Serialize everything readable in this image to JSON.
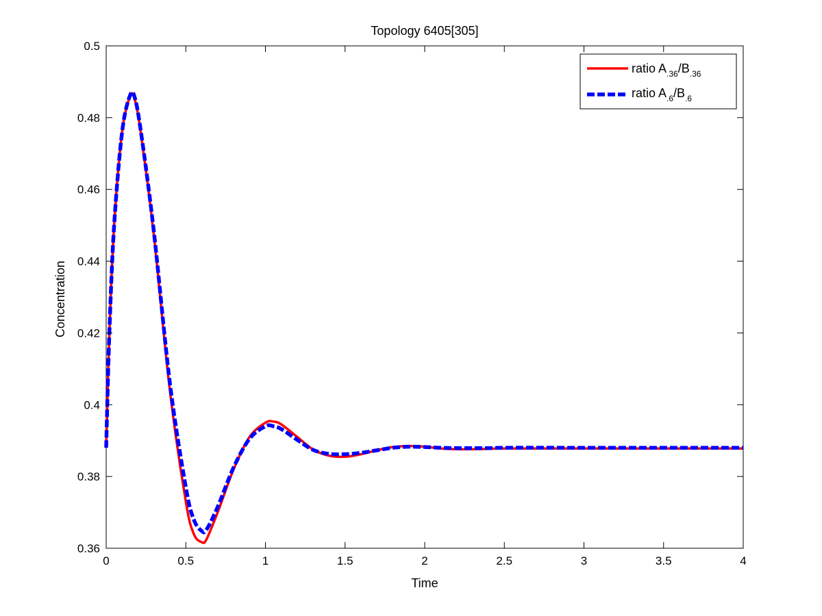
{
  "chart_data": {
    "type": "line",
    "title": "Topology 6405[305]",
    "xlabel": "Time",
    "ylabel": "Concentration",
    "xlim": [
      0,
      4
    ],
    "ylim": [
      0.36,
      0.5
    ],
    "xticks": [
      0,
      0.5,
      1,
      1.5,
      2,
      2.5,
      3,
      3.5,
      4
    ],
    "xtick_labels": [
      "0",
      "0.5",
      "1",
      "1.5",
      "2",
      "2.5",
      "3",
      "3.5",
      "4"
    ],
    "yticks": [
      0.36,
      0.38,
      0.4,
      0.42,
      0.44,
      0.46,
      0.48,
      0.5
    ],
    "ytick_labels": [
      "0.36",
      "0.38",
      "0.4",
      "0.42",
      "0.44",
      "0.46",
      "0.48",
      "0.5"
    ],
    "grid": false,
    "legend_position": "top-right",
    "series": [
      {
        "name": "ratio A.36/B.36",
        "legend_main": "ratio A",
        "legend_sub1": ".36",
        "legend_mid": "/B",
        "legend_sub2": ".36",
        "color": "#ff0000",
        "style": "solid",
        "x": [
          0,
          0.02,
          0.05,
          0.1,
          0.15,
          0.18,
          0.22,
          0.3,
          0.4,
          0.5,
          0.55,
          0.6,
          0.63,
          0.7,
          0.8,
          0.9,
          1.0,
          1.05,
          1.1,
          1.2,
          1.3,
          1.4,
          1.5,
          1.6,
          1.7,
          1.8,
          1.9,
          2.0,
          2.1,
          2.2,
          2.3,
          2.4,
          2.5,
          3.0,
          3.5,
          4.0
        ],
        "y": [
          0.388,
          0.42,
          0.45,
          0.476,
          0.486,
          0.485,
          0.475,
          0.447,
          0.404,
          0.373,
          0.364,
          0.3617,
          0.3625,
          0.37,
          0.382,
          0.391,
          0.395,
          0.3953,
          0.3945,
          0.391,
          0.3875,
          0.3858,
          0.3855,
          0.3862,
          0.3873,
          0.3882,
          0.3885,
          0.3883,
          0.3878,
          0.3876,
          0.3876,
          0.3877,
          0.3878,
          0.3878,
          0.3878,
          0.3878
        ]
      },
      {
        "name": "ratio A.6/B.6",
        "legend_main": "ratio A",
        "legend_sub1": ".6",
        "legend_mid": "/B",
        "legend_sub2": ".6",
        "color": "#0000ff",
        "style": "dashed",
        "x": [
          0,
          0.02,
          0.05,
          0.1,
          0.15,
          0.18,
          0.22,
          0.3,
          0.4,
          0.5,
          0.55,
          0.6,
          0.63,
          0.7,
          0.8,
          0.9,
          1.0,
          1.05,
          1.1,
          1.2,
          1.3,
          1.4,
          1.5,
          1.6,
          1.7,
          1.8,
          1.9,
          2.0,
          2.1,
          2.2,
          2.3,
          2.4,
          2.5,
          3.0,
          3.5,
          4.0
        ],
        "y": [
          0.388,
          0.42,
          0.45,
          0.476,
          0.4862,
          0.4855,
          0.4755,
          0.448,
          0.406,
          0.377,
          0.368,
          0.3648,
          0.3652,
          0.3715,
          0.3825,
          0.3905,
          0.394,
          0.394,
          0.3932,
          0.3902,
          0.3874,
          0.3863,
          0.3862,
          0.3866,
          0.3873,
          0.388,
          0.3883,
          0.3882,
          0.388,
          0.3879,
          0.3879,
          0.3879,
          0.388,
          0.388,
          0.388,
          0.388
        ]
      }
    ]
  }
}
